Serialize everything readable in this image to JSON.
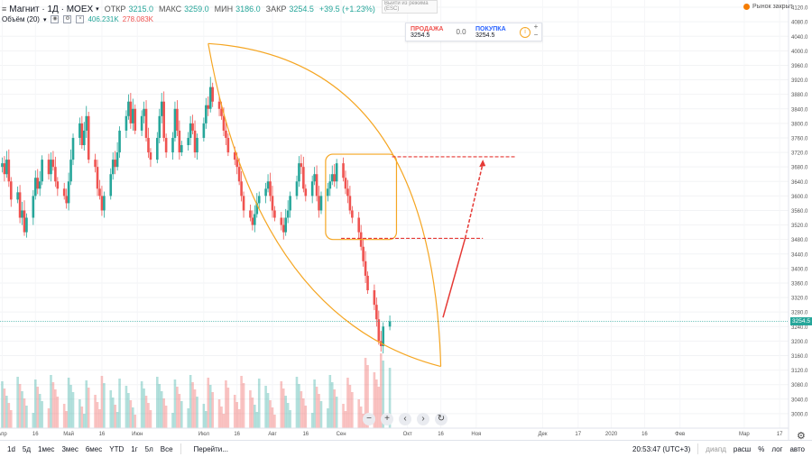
{
  "header": {
    "symbol": "Магнит · 1Д · MOEX",
    "open_label": "ОТКР",
    "open": "3215.0",
    "high_label": "МАКС",
    "high": "3259.0",
    "low_label": "МИН",
    "low": "3186.0",
    "close_label": "ЗАКР",
    "close": "3254.5",
    "change": "+39.5 (+1.23%)"
  },
  "volume_legend": {
    "label": "Объём (20)",
    "up": "406.231K",
    "down": "278.083K"
  },
  "hint": "Выйти из режима (ESC)",
  "trade_panel": {
    "sell_label": "ПРОДАЖА",
    "sell_price": "3254.5",
    "spread": "0.0",
    "buy_label": "ПОКУПКА",
    "buy_price": "3254.5",
    "plus": "+",
    "minus": "−"
  },
  "market_status": "Рынок закрыт",
  "last_price_badge": "3254.5",
  "bottom": {
    "timeframes": [
      "1d",
      "5д",
      "1мес",
      "3мес",
      "6мес",
      "YTD",
      "1г",
      "5л",
      "Все"
    ],
    "goto": "Перейти...",
    "clock": "20:53:47 (UTC+3)",
    "divid": "диапд",
    "options": [
      "расш",
      "%",
      "лог",
      "авто"
    ]
  },
  "controls": {
    "minus": "−",
    "plus": "+",
    "left": "‹",
    "right": "›",
    "reset": "↻"
  },
  "colors": {
    "up": "#26a69a",
    "down": "#ef5350",
    "accent": "#f5a623",
    "dash": "#e53935"
  },
  "chart_data": {
    "type": "candlestick",
    "symbol": "Магнит",
    "timeframe": "1Д",
    "ylim": [
      2960,
      4140
    ],
    "y_ticks": [
      3000,
      3040,
      3080,
      3120,
      3160,
      3200,
      3240,
      3280,
      3320,
      3360,
      3400,
      3440,
      3480,
      3520,
      3560,
      3600,
      3640,
      3680,
      3720,
      3760,
      3800,
      3840,
      3880,
      3920,
      3960,
      4000,
      4040,
      4080,
      4120
    ],
    "x_tick_labels": [
      "Апр",
      "16",
      "Май",
      "16",
      "Июн",
      "Июл",
      "16",
      "Авг",
      "16",
      "Сен",
      "Окт",
      "16",
      "Ноя",
      "Дек",
      "17",
      "2020",
      "16",
      "Фев",
      "Мар",
      "17"
    ],
    "x_ticks_date": [
      "2019-04-01",
      "2019-04-16",
      "2019-05-01",
      "2019-05-16",
      "2019-06-01",
      "2019-07-01",
      "2019-07-16",
      "2019-08-01",
      "2019-08-16",
      "2019-09-01",
      "2019-10-01",
      "2019-10-16",
      "2019-11-01",
      "2019-12-01",
      "2019-12-17",
      "2020-01-01",
      "2020-01-16",
      "2020-02-01",
      "2020-03-01",
      "2020-03-17"
    ],
    "x_range_date": [
      "2019-03-31",
      "2020-03-21"
    ],
    "close_series": [
      3680,
      3690,
      3660,
      3700,
      3640,
      3590,
      3610,
      3540,
      3560,
      3500,
      3540,
      3600,
      3650,
      3620,
      3640,
      3700,
      3660,
      3700,
      3680,
      3640,
      3620,
      3600,
      3580,
      3640,
      3700,
      3760,
      3800,
      3740,
      3780,
      3820,
      3700,
      3680,
      3620,
      3600,
      3560,
      3600,
      3660,
      3700,
      3680,
      3720,
      3780,
      3820,
      3860,
      3800,
      3840,
      3780,
      3820,
      3840,
      3760,
      3720,
      3700,
      3760,
      3820,
      3860,
      3760,
      3720,
      3760,
      3840,
      3780,
      3720,
      3740,
      3760,
      3800,
      3780,
      3720,
      3760,
      3800,
      3850,
      3840,
      3900,
      3860,
      3840,
      3820,
      3780,
      3760,
      3720,
      3700,
      3680,
      3640,
      3600,
      3560,
      3540,
      3520,
      3550,
      3580,
      3600,
      3620,
      3640,
      3600,
      3560,
      3540,
      3520,
      3500,
      3540,
      3560,
      3600,
      3640,
      3690,
      3680,
      3620,
      3600,
      3640,
      3660,
      3600,
      3560,
      3600,
      3620,
      3640,
      3660,
      3640,
      3690,
      3650,
      3620,
      3600,
      3560,
      3540,
      3500,
      3460,
      3420,
      3380,
      3340,
      3300,
      3260,
      3200,
      3186,
      3240,
      3254.5
    ],
    "last_price": 3254.5,
    "annotations": [
      {
        "type": "rectangle",
        "name": "consolidation"
      },
      {
        "type": "hline",
        "value": 3708
      },
      {
        "type": "hline",
        "value": 3483
      },
      {
        "type": "arc",
        "name": "rounded-decline"
      },
      {
        "type": "arrow",
        "name": "projected-rise"
      }
    ]
  }
}
